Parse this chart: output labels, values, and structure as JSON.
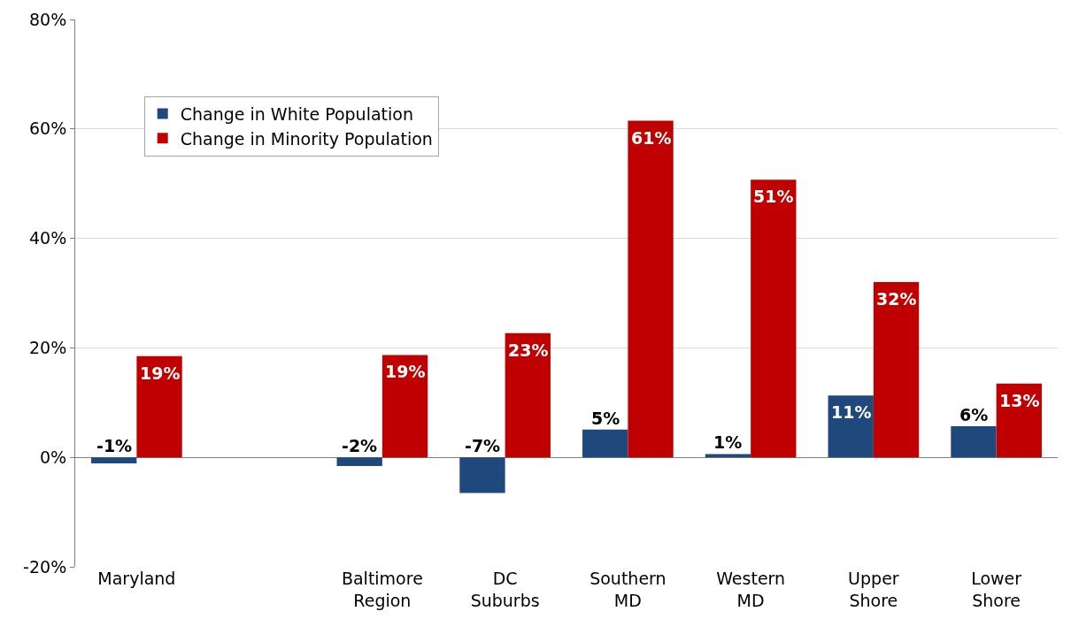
{
  "chart_data": {
    "type": "bar",
    "categories": [
      "Maryland",
      null,
      "Baltimore Region",
      "DC Suburbs",
      "Southern MD",
      "Western MD",
      "Upper Shore",
      "Lower Shore"
    ],
    "series": [
      {
        "name": "Change in White Population",
        "color": "#1f497d",
        "values": [
          -1.1,
          null,
          -1.6,
          -6.5,
          5.1,
          0.6,
          11.3,
          5.7
        ],
        "value_labels": [
          "-1%",
          null,
          "-2%",
          "-7%",
          "5%",
          "1%",
          "11%",
          "6%"
        ]
      },
      {
        "name": "Change in Minority Population",
        "color": "#c00000",
        "values": [
          18.5,
          null,
          18.7,
          22.7,
          61.5,
          50.7,
          32.0,
          13.5
        ],
        "value_labels": [
          "19%",
          null,
          "19%",
          "23%",
          "61%",
          "51%",
          "32%",
          "13%"
        ]
      }
    ],
    "ylim": [
      -20,
      80
    ],
    "yticks": [
      {
        "value": -20,
        "label": "-20%"
      },
      {
        "value": 0,
        "label": "0%"
      },
      {
        "value": 20,
        "label": "20%"
      },
      {
        "value": 40,
        "label": "40%"
      },
      {
        "value": 60,
        "label": "60%"
      },
      {
        "value": 80,
        "label": "80%"
      }
    ],
    "grid": "y",
    "legend": "top left"
  }
}
